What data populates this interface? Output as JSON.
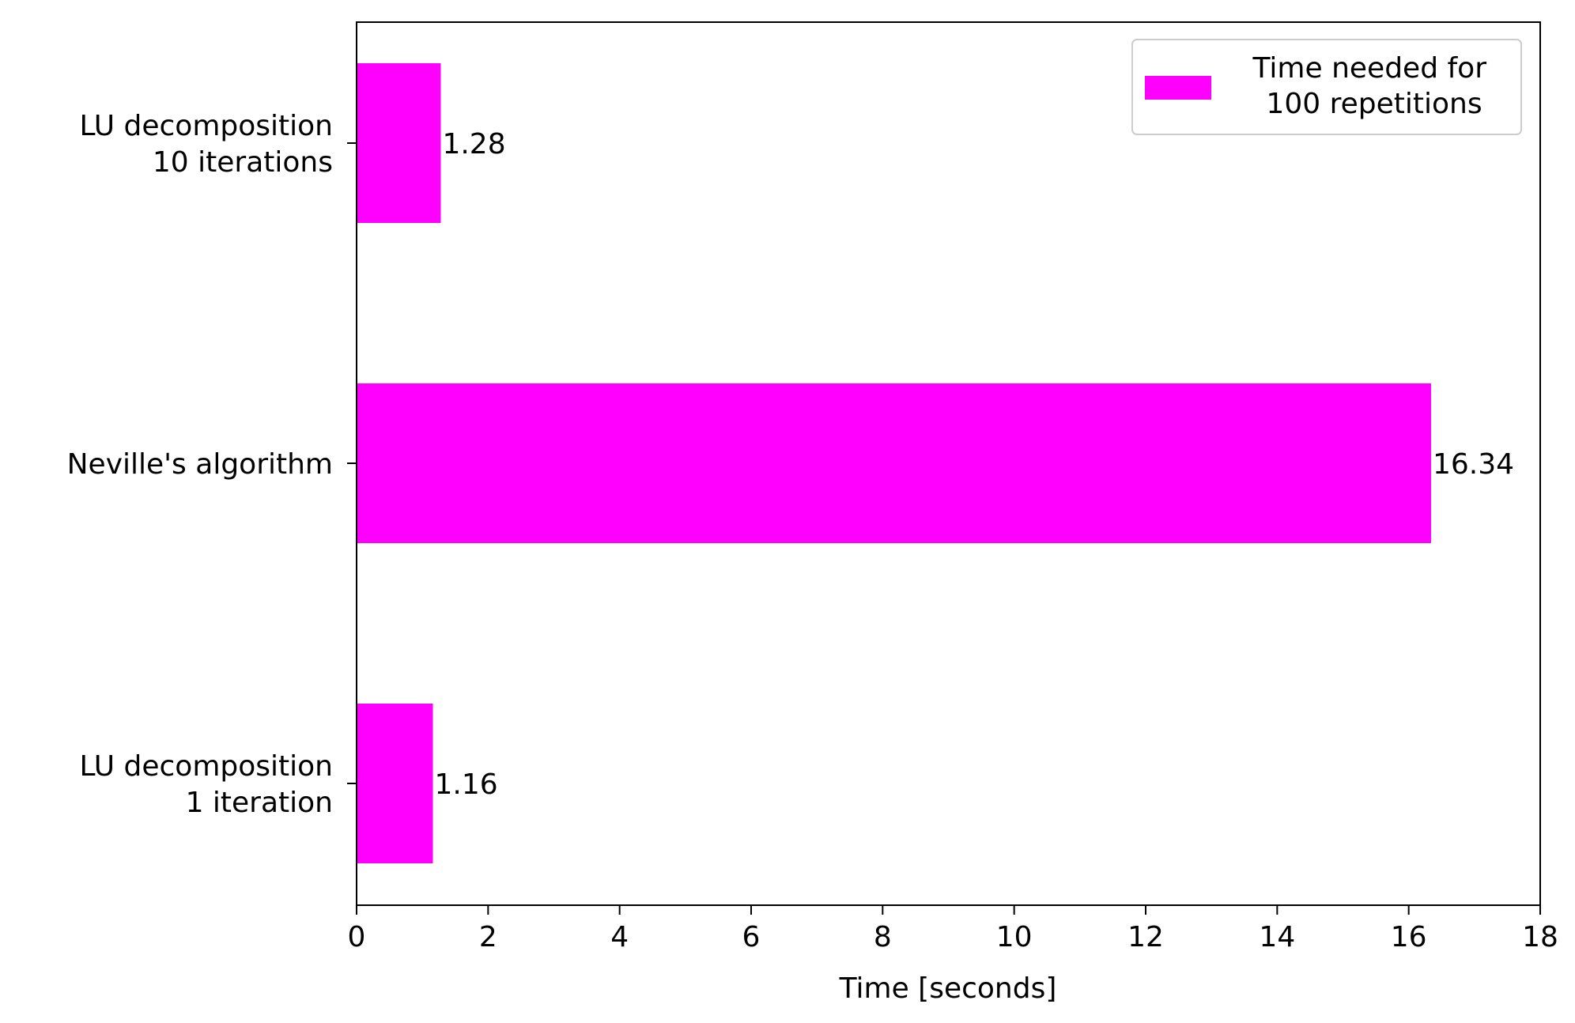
{
  "chart_data": {
    "type": "bar",
    "orientation": "horizontal",
    "categories": [
      [
        "LU decomposition",
        "10 iterations"
      ],
      [
        "Neville's algorithm"
      ],
      [
        "LU decomposition",
        "1 iteration"
      ]
    ],
    "series": [
      {
        "name": [
          "Time needed for",
          "100 repetitions"
        ],
        "values": [
          1.28,
          16.34,
          1.16
        ],
        "data_labels": [
          "1.28",
          "16.34",
          "1.16"
        ],
        "color": "#ff00ff"
      }
    ],
    "xlabel": "Time [seconds]",
    "ylabel": "",
    "title": "",
    "xlim": [
      0,
      18
    ],
    "xticks": [
      "0",
      "2",
      "4",
      "6",
      "8",
      "10",
      "12",
      "14",
      "16",
      "18"
    ],
    "grid": false,
    "legend_position": "top-right"
  }
}
